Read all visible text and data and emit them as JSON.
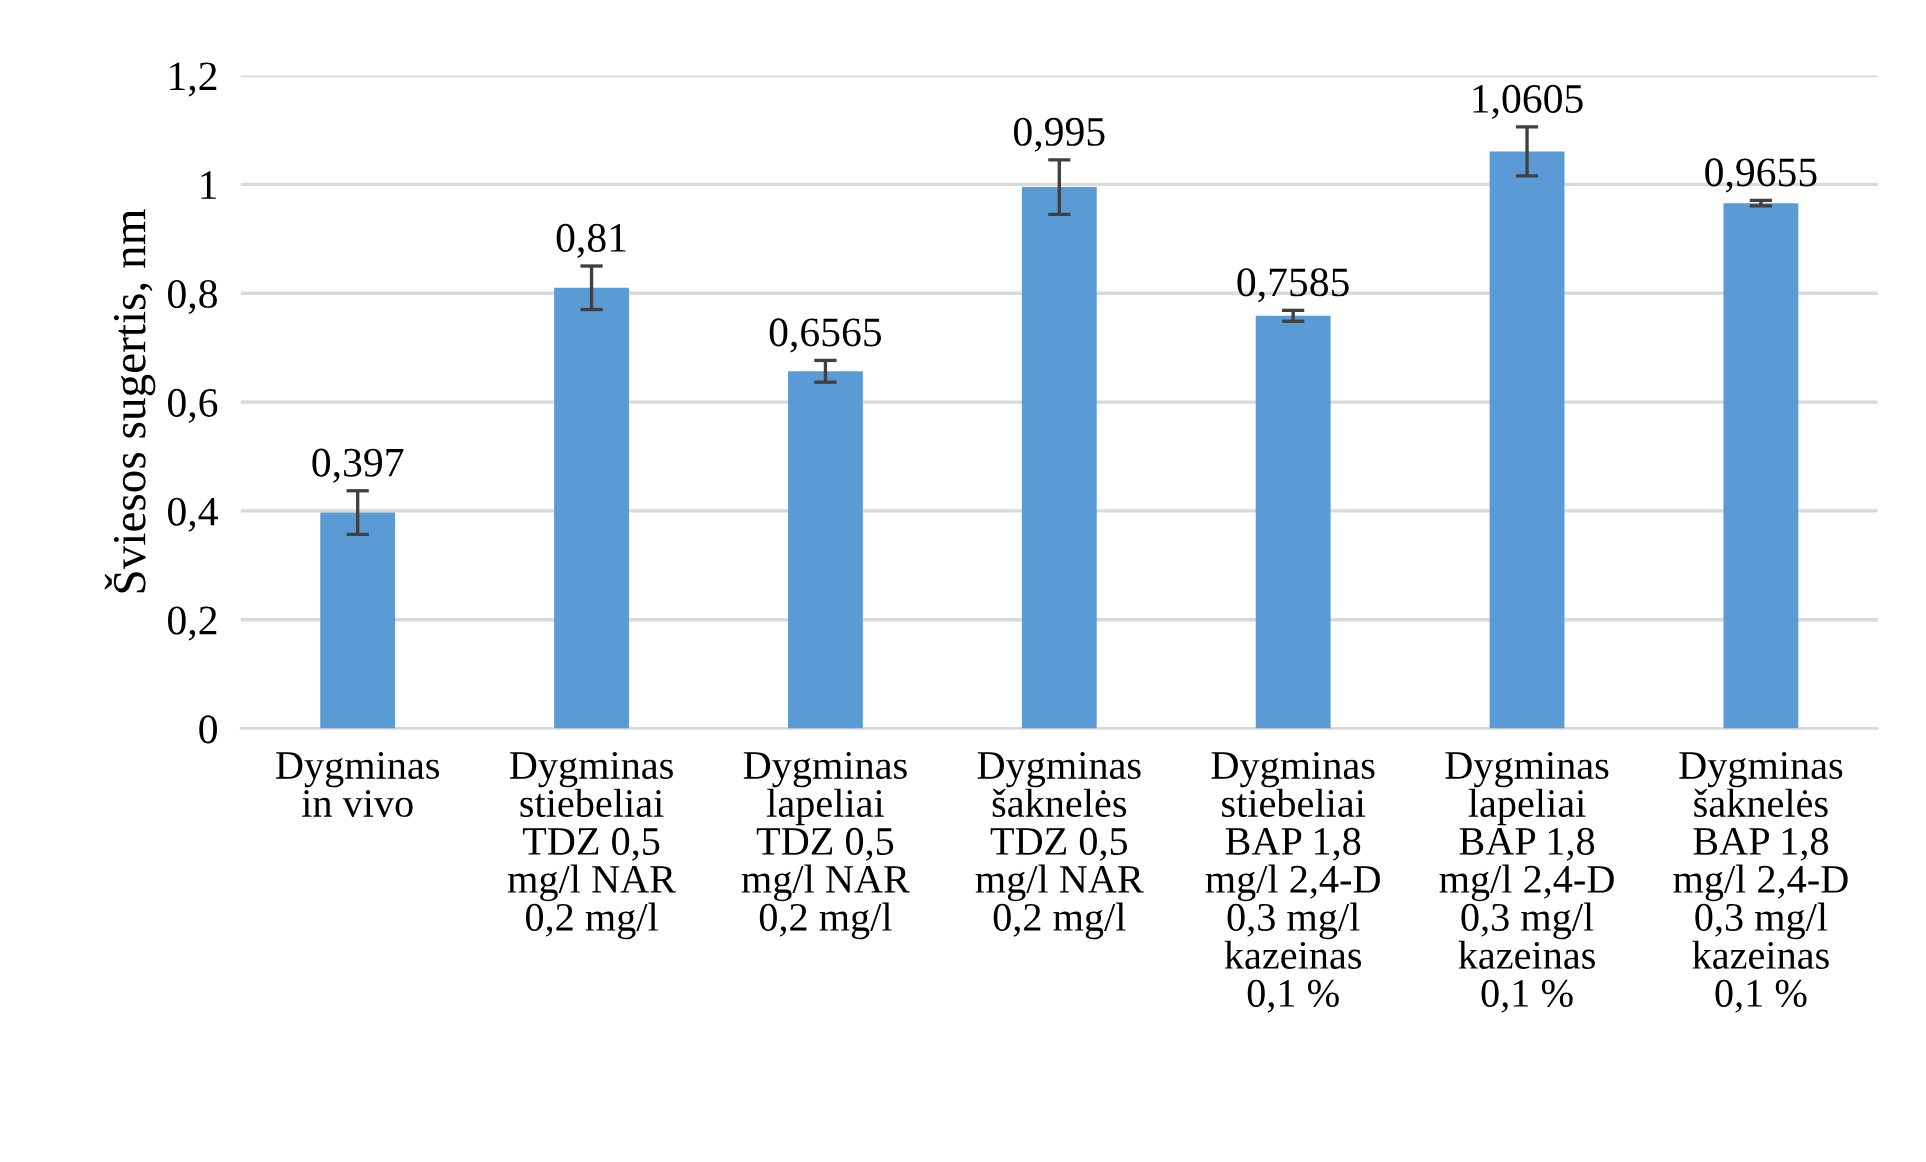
{
  "chart_data": {
    "type": "bar",
    "ylabel": "Šviesos sugertis, nm",
    "categories": [
      "Dygminas\nin vivo",
      "Dygminas\nstiebeliai\nTDZ 0,5\nmg/l NAR\n0,2 mg/l",
      "Dygminas\nlapeliai\nTDZ 0,5\nmg/l NAR\n0,2 mg/l",
      "Dygminas\nšaknelės\nTDZ 0,5\nmg/l NAR\n0,2 mg/l",
      "Dygminas\nstiebeliai\nBAP 1,8\nmg/l 2,4-D\n0,3 mg/l\nkazeinas\n0,1 %",
      "Dygminas\nlapeliai\nBAP 1,8\nmg/l 2,4-D\n0,3 mg/l\nkazeinas\n0,1 %",
      "Dygminas\nšaknelės\nBAP 1,8\nmg/l 2,4-D\n0,3 mg/l\nkazeinas\n0,1 %"
    ],
    "values": [
      0.397,
      0.81,
      0.6565,
      0.995,
      0.7585,
      1.0605,
      0.9655
    ],
    "errors": [
      0.04,
      0.04,
      0.02,
      0.05,
      0.01,
      0.045,
      0.005
    ],
    "value_labels": [
      "0,397",
      "0,81",
      "0,6565",
      "0,995",
      "0,7585",
      "1,0605",
      "0,9655"
    ],
    "color": "#5b9bd5",
    "ylim": [
      0,
      1.2
    ],
    "yticks": [
      0,
      {
        "value": 0.2,
        "label": "0,2"
      },
      {
        "value": 0.4,
        "label": "0,4"
      },
      {
        "value": 0.6,
        "label": "0,6"
      },
      {
        "value": 0.8,
        "label": "0,8"
      },
      1,
      {
        "value": 1.2,
        "label": "1,2"
      }
    ],
    "grid": "y",
    "legend": false
  }
}
